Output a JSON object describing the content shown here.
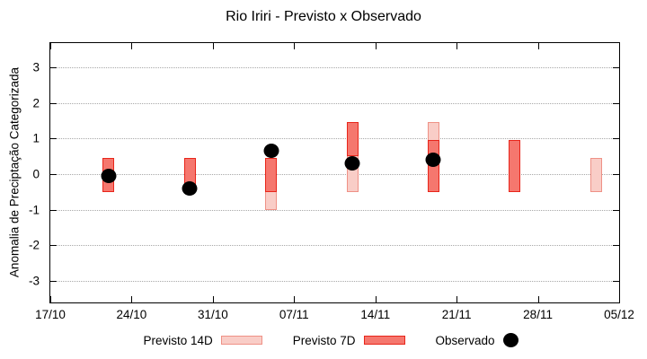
{
  "title": "Rio Iriri - Previsto x Observado",
  "legend": [
    {
      "label": "Previsto 14D",
      "swatch": "bar14"
    },
    {
      "label": "Previsto 7D",
      "swatch": "bar7"
    },
    {
      "label": "Observado",
      "swatch": "dot"
    }
  ],
  "colors": {
    "p14_fill": "#f9cdc7",
    "p14_border": "#ef9186",
    "p7_fill": "#f5776e",
    "p7_border": "#e8251a",
    "obs": "#000000",
    "grid": "#a8a8a8",
    "axis": "#000000"
  },
  "chart_data": {
    "type": "bar",
    "subtype": "floating-range-bars-with-scatter-overlay",
    "title": "Rio Iriri - Previsto x Observado",
    "xlabel": "",
    "ylabel": "Anomalia de Preciptação Categorizada",
    "ylim": [
      -3.6,
      3.675
    ],
    "y_tick_values": [
      3,
      2,
      1,
      0,
      -1,
      -2,
      -3
    ],
    "y_tick_labels": [
      "3",
      "2",
      "1",
      "0",
      "-1",
      "-2",
      "-3"
    ],
    "x_tick_labels": [
      "17/10",
      "24/10",
      "31/10",
      "07/11",
      "14/11",
      "21/11",
      "28/11",
      "05/12"
    ],
    "x_axis_span_days": 49,
    "grid": "horizontal-dotted",
    "legend_position": "bottom",
    "bar_x_fractions": {
      "22/10": 0.102,
      "29/10": 0.245,
      "05/11": 0.388,
      "12/11": 0.531,
      "19/11": 0.673,
      "26/11": 0.816,
      "03/12": 0.959
    },
    "series": [
      {
        "name": "Previsto 14D",
        "type": "range-bar",
        "points": [
          {
            "x": "05/11",
            "high": 0.45,
            "low": -1.0
          },
          {
            "x": "12/11",
            "high": 0.95,
            "low": -0.5
          },
          {
            "x": "19/11",
            "high": 1.45,
            "low": -0.5
          },
          {
            "x": "03/12",
            "high": 0.45,
            "low": -0.5
          }
        ]
      },
      {
        "name": "Previsto 7D",
        "type": "range-bar",
        "points": [
          {
            "x": "22/10",
            "high": 0.45,
            "low": -0.5
          },
          {
            "x": "29/10",
            "high": 0.45,
            "low": -0.45
          },
          {
            "x": "05/11",
            "high": 0.45,
            "low": -0.5
          },
          {
            "x": "12/11",
            "high": 1.45,
            "low": 0.5
          },
          {
            "x": "19/11",
            "high": 0.95,
            "low": -0.5
          },
          {
            "x": "26/11",
            "high": 0.95,
            "low": -0.5
          }
        ]
      },
      {
        "name": "Observado",
        "type": "scatter",
        "points": [
          {
            "x": "22/10",
            "y": -0.05
          },
          {
            "x": "29/10",
            "y": -0.4
          },
          {
            "x": "05/11",
            "y": 0.65
          },
          {
            "x": "12/11",
            "y": 0.3
          },
          {
            "x": "19/11",
            "y": 0.4
          }
        ]
      }
    ]
  }
}
